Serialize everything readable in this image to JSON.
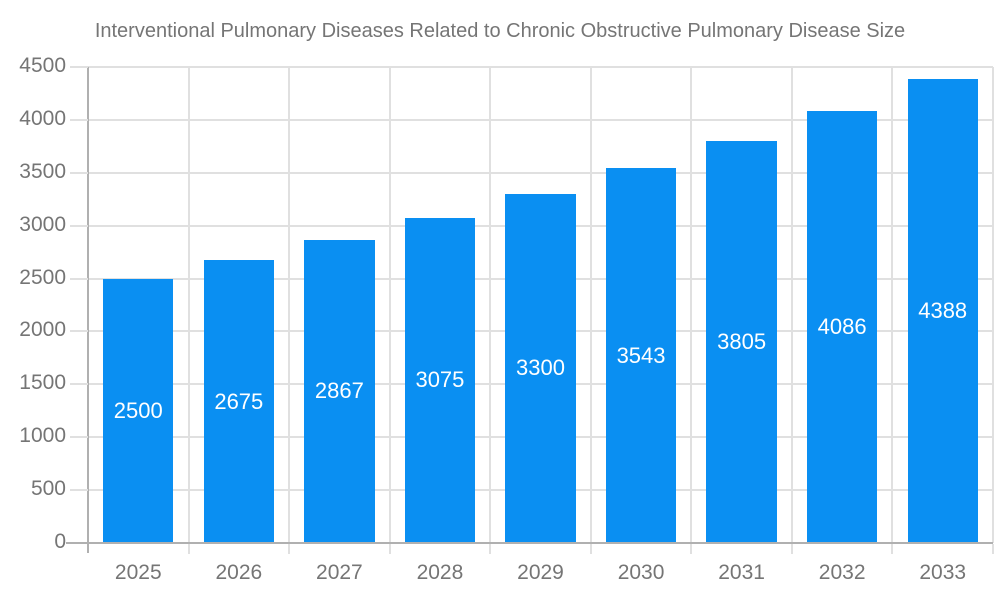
{
  "chart_data": {
    "type": "bar",
    "title": "Interventional Pulmonary Diseases Related to Chronic Obstructive Pulmonary Disease Size",
    "categories": [
      "2025",
      "2026",
      "2027",
      "2028",
      "2029",
      "2030",
      "2031",
      "2032",
      "2033"
    ],
    "values": [
      2500,
      2675,
      2867,
      3075,
      3300,
      3543,
      3805,
      4086,
      4388
    ],
    "bar_value_labels": [
      "2500",
      "2675",
      "2867",
      "3075",
      "3300",
      "3543",
      "3805",
      "4086",
      "4388"
    ],
    "xlabel": "",
    "ylabel": "",
    "ylim": [
      0,
      4500
    ],
    "y_ticks": [
      0,
      500,
      1000,
      1500,
      2000,
      2500,
      3000,
      3500,
      4000,
      4500
    ],
    "grid": true,
    "legend": "none",
    "bar_label_position": "inside-center"
  },
  "colors": {
    "bar": "#0a8ff2",
    "bar_label": "#ffffff",
    "grid": "#e0e0e0",
    "axis": "#b0b0b0",
    "text": "#757575",
    "background": "#ffffff"
  }
}
